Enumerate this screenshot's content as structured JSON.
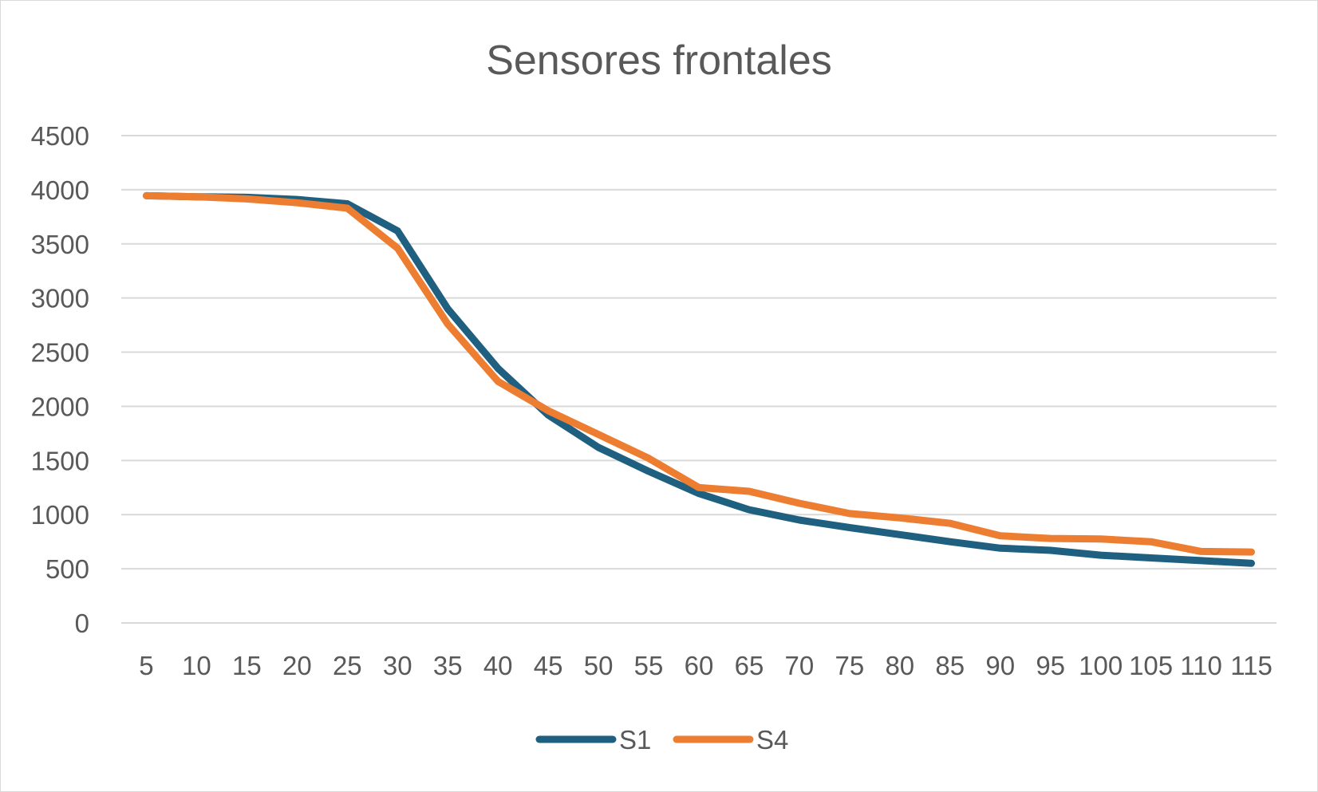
{
  "chart_data": {
    "type": "line",
    "title": "Sensores frontales",
    "xlabel": "",
    "ylabel": "",
    "x": [
      "5",
      "10",
      "15",
      "20",
      "25",
      "30",
      "35",
      "40",
      "45",
      "50",
      "55",
      "60",
      "65",
      "70",
      "75",
      "80",
      "85",
      "90",
      "95",
      "100",
      "105",
      "110",
      "115"
    ],
    "ylim": [
      0,
      4500
    ],
    "yticks": [
      "0",
      "500",
      "1000",
      "1500",
      "2000",
      "2500",
      "3000",
      "3500",
      "4000",
      "4500"
    ],
    "grid": true,
    "legend_position": "bottom",
    "series": [
      {
        "name": "S1",
        "color": "#1f5f80",
        "values": [
          3945,
          3935,
          3930,
          3910,
          3870,
          3620,
          2900,
          2350,
          1920,
          1620,
          1400,
          1195,
          1045,
          950,
          880,
          815,
          750,
          690,
          670,
          625,
          600,
          575,
          550
        ]
      },
      {
        "name": "S4",
        "color": "#ed7d31",
        "values": [
          3945,
          3935,
          3915,
          3880,
          3830,
          3460,
          2760,
          2230,
          1960,
          1740,
          1520,
          1250,
          1215,
          1105,
          1010,
          970,
          920,
          805,
          780,
          775,
          750,
          660,
          655
        ]
      }
    ]
  }
}
